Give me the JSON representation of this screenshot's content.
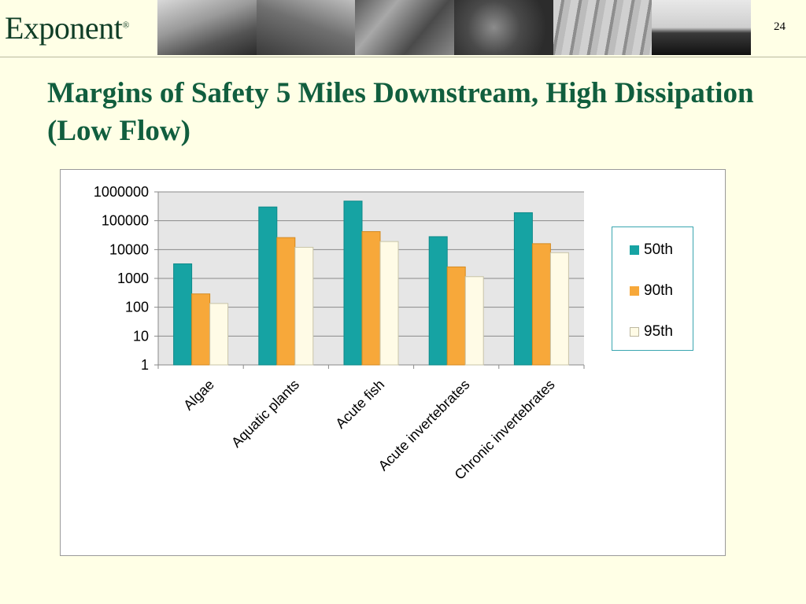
{
  "header": {
    "logo_text": "Exponent",
    "logo_mark": "®",
    "page_number": "24"
  },
  "slide": {
    "title": "Margins of Safety 5 Miles Downstream, High Dissipation (Low Flow)"
  },
  "colors": {
    "series_50th": "#16a3a3",
    "series_90th": "#f7a83a",
    "series_95th": "#fffbe6",
    "plot_bg": "#e6e6e6",
    "title": "#115e3e"
  },
  "chart_data": {
    "type": "bar",
    "title": "",
    "xlabel": "",
    "ylabel": "",
    "y_scale": "log",
    "ylim": [
      1,
      1000000
    ],
    "y_ticks": [
      "1",
      "10",
      "100",
      "1000",
      "10000",
      "100000",
      "1000000"
    ],
    "grid": true,
    "legend_position": "right",
    "categories": [
      "Algae",
      "Aquatic plants",
      "Acute fish",
      "Acute invertebrates",
      "Chronic invertebrates"
    ],
    "series": [
      {
        "name": "50th",
        "color": "#16a3a3",
        "values": [
          3200,
          300000,
          480000,
          28000,
          190000
        ]
      },
      {
        "name": "90th",
        "color": "#f7a83a",
        "values": [
          290,
          26000,
          42000,
          2500,
          16000
        ]
      },
      {
        "name": "95th",
        "color": "#fffbe6",
        "values": [
          135,
          12000,
          19000,
          1150,
          7800
        ]
      }
    ]
  }
}
